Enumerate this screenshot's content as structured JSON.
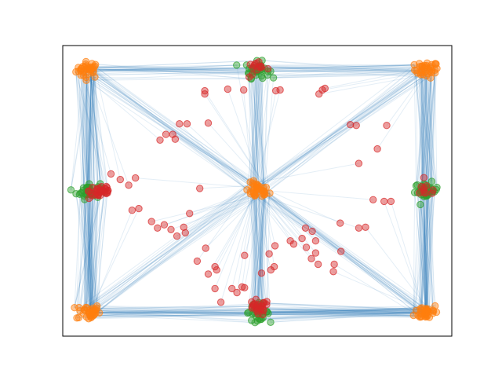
{
  "chart_data": {
    "type": "scatter",
    "title": "",
    "xlabel": "",
    "ylabel": "",
    "xlim": [
      -0.3,
      4.3
    ],
    "ylim": [
      -0.3,
      3.3
    ],
    "ticks_visible": false,
    "grid": false,
    "legend": "none",
    "edge_color": "#1f77b4",
    "series": [
      {
        "color": "#ff7f0e",
        "role": "cluster",
        "clusters": [
          {
            "x": 0.0,
            "y": 3.0,
            "count": 35
          },
          {
            "x": 4.0,
            "y": 3.0,
            "count": 35
          },
          {
            "x": 2.0,
            "y": 1.5,
            "count": 35
          },
          {
            "x": 0.0,
            "y": 0.0,
            "count": 35
          },
          {
            "x": 4.0,
            "y": 0.0,
            "count": 35
          }
        ]
      },
      {
        "color": "#2ca02c",
        "role": "cluster",
        "clusters": [
          {
            "x": 2.0,
            "y": 3.0,
            "count": 35
          },
          {
            "x": 0.0,
            "y": 1.5,
            "count": 35
          },
          {
            "x": 4.0,
            "y": 1.5,
            "count": 35
          },
          {
            "x": 2.0,
            "y": 0.0,
            "count": 35
          }
        ]
      },
      {
        "color": "#d62728",
        "role": "cluster",
        "clusters": [
          {
            "x": 2.0,
            "y": 3.0,
            "count": 14
          },
          {
            "x": 0.15,
            "y": 1.5,
            "count": 35
          },
          {
            "x": 4.0,
            "y": 1.5,
            "count": 10
          },
          {
            "x": 2.0,
            "y": 0.05,
            "count": 25
          }
        ]
      },
      {
        "color": "#d62728",
        "role": "scattered",
        "points": [
          [
            1.38,
            2.74
          ],
          [
            1.65,
            2.76
          ],
          [
            1.38,
            2.7
          ],
          [
            1.84,
            2.75
          ],
          [
            2.22,
            2.74
          ],
          [
            2.27,
            2.75
          ],
          [
            2.77,
            2.75
          ],
          [
            2.8,
            2.77
          ],
          [
            2.73,
            2.7
          ],
          [
            1.08,
            2.33
          ],
          [
            1.17,
            2.33
          ],
          [
            1.42,
            2.34
          ],
          [
            0.92,
            2.2
          ],
          [
            1.0,
            2.2
          ],
          [
            1.03,
            2.14
          ],
          [
            0.85,
            2.13
          ],
          [
            3.17,
            2.31
          ],
          [
            3.1,
            2.32
          ],
          [
            3.53,
            2.31
          ],
          [
            3.2,
            1.84
          ],
          [
            3.42,
            2.02
          ],
          [
            3.5,
            1.37
          ],
          [
            3.58,
            1.37
          ],
          [
            3.37,
            1.39
          ],
          [
            0.38,
            1.64
          ],
          [
            0.56,
            1.66
          ],
          [
            0.27,
            1.71
          ],
          [
            0.48,
            1.57
          ],
          [
            1.32,
            1.53
          ],
          [
            0.52,
            1.26
          ],
          [
            0.6,
            1.28
          ],
          [
            1.2,
            1.22
          ],
          [
            0.75,
            1.12
          ],
          [
            0.9,
            1.08
          ],
          [
            1.13,
            1.05
          ],
          [
            0.82,
            1.04
          ],
          [
            0.98,
            1.02
          ],
          [
            1.05,
            0.94
          ],
          [
            1.15,
            0.98
          ],
          [
            2.98,
            1.1
          ],
          [
            3.2,
            1.04
          ],
          [
            3.28,
            1.05
          ],
          [
            2.57,
            1.04
          ],
          [
            2.65,
            1.0
          ],
          [
            2.53,
            0.91
          ],
          [
            2.39,
            0.88
          ],
          [
            2.43,
            0.84
          ],
          [
            2.69,
            0.88
          ],
          [
            2.69,
            0.73
          ],
          [
            2.99,
            0.75
          ],
          [
            2.64,
            0.66
          ],
          [
            2.72,
            0.59
          ],
          [
            2.91,
            0.59
          ],
          [
            2.2,
            0.56
          ],
          [
            2.16,
            0.52
          ],
          [
            2.05,
            0.48
          ],
          [
            2.14,
            0.72
          ],
          [
            2.21,
            0.82
          ],
          [
            1.7,
            0.29
          ],
          [
            1.76,
            0.24
          ],
          [
            1.5,
            0.29
          ],
          [
            1.82,
            0.31
          ],
          [
            1.85,
            0.3
          ],
          [
            1.57,
            0.12
          ],
          [
            1.29,
            0.63
          ],
          [
            1.39,
            0.79
          ],
          [
            1.52,
            0.52
          ],
          [
            1.5,
            0.56
          ],
          [
            1.42,
            0.47
          ],
          [
            2.58,
            0.8
          ],
          [
            2.9,
            0.5
          ],
          [
            1.85,
            0.7
          ]
        ]
      }
    ]
  }
}
